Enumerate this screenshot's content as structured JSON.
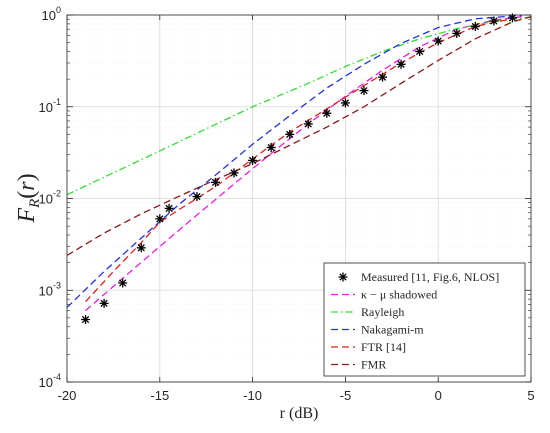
{
  "chart_data": {
    "type": "line",
    "title": "",
    "xlabel": "r (dB)",
    "ylabel": "F_R(r)",
    "ylabel_parts": {
      "main": "F",
      "sub": "R",
      "paren_open": "(",
      "arg": "r",
      "paren_close": ")"
    },
    "xlim": [
      -20,
      5
    ],
    "ylim": [
      0.0001,
      1
    ],
    "yscale": "log",
    "grid": true,
    "legend_position": "bottom-right",
    "x_ticks": [
      {
        "value": -20,
        "label": "-20"
      },
      {
        "value": -15,
        "label": "-15"
      },
      {
        "value": -10,
        "label": "-10"
      },
      {
        "value": -5,
        "label": "-5"
      },
      {
        "value": 0,
        "label": "0"
      },
      {
        "value": 5,
        "label": "5"
      }
    ],
    "y_ticks": [
      {
        "value": 0.0001,
        "base": "10",
        "exp": "-4"
      },
      {
        "value": 0.001,
        "base": "10",
        "exp": "-3"
      },
      {
        "value": 0.01,
        "base": "10",
        "exp": "-2"
      },
      {
        "value": 0.1,
        "base": "10",
        "exp": "-1"
      },
      {
        "value": 1,
        "base": "10",
        "exp": "0"
      }
    ],
    "series": [
      {
        "name": "Measured [11, Fig.6, NLOS]",
        "style": "marker",
        "marker": "asterisk",
        "color": "#000000",
        "points": [
          [
            -19,
            0.00048
          ],
          [
            -18,
            0.00072
          ],
          [
            -17,
            0.0012
          ],
          [
            -16,
            0.0029
          ],
          [
            -15,
            0.006
          ],
          [
            -14.5,
            0.0078
          ],
          [
            -13,
            0.0105
          ],
          [
            -12,
            0.015
          ],
          [
            -11,
            0.019
          ],
          [
            -10,
            0.026
          ],
          [
            -9,
            0.036
          ],
          [
            -8,
            0.05
          ],
          [
            -7,
            0.065
          ],
          [
            -6,
            0.085
          ],
          [
            -5,
            0.11
          ],
          [
            -4,
            0.15
          ],
          [
            -3,
            0.21
          ],
          [
            -2,
            0.29
          ],
          [
            -1,
            0.4
          ],
          [
            0,
            0.52
          ],
          [
            1,
            0.63
          ],
          [
            2,
            0.75
          ],
          [
            3,
            0.86
          ],
          [
            4,
            0.93
          ]
        ]
      },
      {
        "name": "κ − μ shadowed",
        "style": "dashed",
        "color": "#e61ee6",
        "points": [
          [
            -19,
            0.0006
          ],
          [
            -17,
            0.00135
          ],
          [
            -15,
            0.003
          ],
          [
            -13,
            0.0066
          ],
          [
            -11,
            0.0144
          ],
          [
            -9,
            0.031
          ],
          [
            -7,
            0.065
          ],
          [
            -5,
            0.13
          ],
          [
            -3,
            0.25
          ],
          [
            -1,
            0.45
          ],
          [
            1,
            0.7
          ],
          [
            3,
            0.88
          ],
          [
            4.5,
            0.96
          ]
        ]
      },
      {
        "name": "Rayleigh",
        "style": "dashdot",
        "color": "#33dd33",
        "points": [
          [
            -20,
            0.011
          ],
          [
            -15,
            0.033
          ],
          [
            -10,
            0.1
          ],
          [
            -7,
            0.18
          ],
          [
            -5,
            0.275
          ],
          [
            -3,
            0.4
          ],
          [
            -1,
            0.55
          ],
          [
            1,
            0.71
          ],
          [
            3,
            0.85
          ],
          [
            5,
            0.95
          ]
        ]
      },
      {
        "name": "Nakagami-m",
        "style": "dashed",
        "color": "#2233dd",
        "points": [
          [
            -20,
            0.00065
          ],
          [
            -18,
            0.0016
          ],
          [
            -16,
            0.0037
          ],
          [
            -14,
            0.0085
          ],
          [
            -12,
            0.018
          ],
          [
            -10,
            0.039
          ],
          [
            -8,
            0.08
          ],
          [
            -6,
            0.16
          ],
          [
            -4,
            0.29
          ],
          [
            -2,
            0.49
          ],
          [
            0,
            0.73
          ],
          [
            2,
            0.91
          ],
          [
            4.5,
            0.99
          ]
        ]
      },
      {
        "name": "FTR [14]",
        "style": "dashed",
        "color": "#dd2222",
        "points": [
          [
            -19,
            0.00075
          ],
          [
            -17.5,
            0.0016
          ],
          [
            -16,
            0.0033
          ],
          [
            -15,
            0.0055
          ],
          [
            -14,
            0.0075
          ],
          [
            -13,
            0.01
          ],
          [
            -12,
            0.0135
          ],
          [
            -11,
            0.019
          ],
          [
            -10,
            0.027
          ],
          [
            -9,
            0.038
          ],
          [
            -8,
            0.053
          ],
          [
            -6,
            0.095
          ],
          [
            -4,
            0.17
          ],
          [
            -2,
            0.3
          ],
          [
            0,
            0.5
          ],
          [
            2,
            0.75
          ],
          [
            4.5,
            0.96
          ]
        ]
      },
      {
        "name": "FMR",
        "style": "dashed",
        "color": "#8b1a1a",
        "points": [
          [
            -20,
            0.0024
          ],
          [
            -18,
            0.0042
          ],
          [
            -16,
            0.0068
          ],
          [
            -14,
            0.0105
          ],
          [
            -12,
            0.016
          ],
          [
            -10,
            0.024
          ],
          [
            -8,
            0.038
          ],
          [
            -6,
            0.06
          ],
          [
            -4,
            0.1
          ],
          [
            -2,
            0.18
          ],
          [
            0,
            0.32
          ],
          [
            2,
            0.55
          ],
          [
            4,
            0.84
          ],
          [
            5,
            0.96
          ]
        ]
      }
    ]
  }
}
